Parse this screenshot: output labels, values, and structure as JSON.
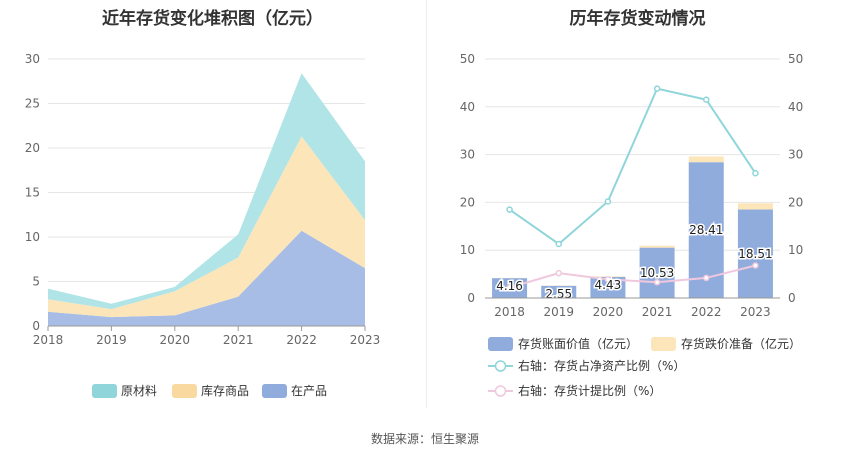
{
  "footer": {
    "source": "数据来源：恒生聚源"
  },
  "chart_data": [
    {
      "type": "area",
      "stacked": true,
      "title": "近年存货变化堆积图（亿元）",
      "categories": [
        "2018",
        "2019",
        "2020",
        "2021",
        "2022",
        "2023"
      ],
      "ylim": [
        0,
        30
      ],
      "yticks": [
        "0",
        "5",
        "10",
        "15",
        "20",
        "25",
        "30"
      ],
      "grid": true,
      "legend_position": "bottom",
      "series": [
        {
          "name": "在产品",
          "values": [
            1.6,
            1.0,
            1.2,
            3.3,
            10.7,
            6.5
          ],
          "color": "#a7bde6"
        },
        {
          "name": "库存商品",
          "values": [
            1.4,
            0.9,
            2.7,
            4.4,
            10.6,
            5.4
          ],
          "color": "#fce5b9"
        },
        {
          "name": "原材料",
          "values": [
            1.2,
            0.6,
            0.5,
            2.6,
            7.1,
            6.6
          ],
          "color": "#b0e4e6"
        }
      ],
      "legend": [
        {
          "name": "原材料",
          "color": "#8fd5da"
        },
        {
          "name": "库存商品",
          "color": "#fad9a1"
        },
        {
          "name": "在产品",
          "color": "#8facdd"
        }
      ]
    },
    {
      "type": "bar",
      "title": "历年存货变动情况",
      "categories": [
        "2018",
        "2019",
        "2020",
        "2021",
        "2022",
        "2023"
      ],
      "ylim": [
        0,
        50
      ],
      "y2lim": [
        0,
        50
      ],
      "yticks": [
        "0",
        "10",
        "20",
        "30",
        "40",
        "50"
      ],
      "grid": true,
      "legend_position": "bottom",
      "bars": [
        {
          "name": "存货账面价值（亿元）",
          "values": [
            4.16,
            2.55,
            4.43,
            10.53,
            28.41,
            18.51
          ],
          "labels": [
            "4.16",
            "2.55",
            "4.43",
            "10.53",
            "28.41",
            "18.51"
          ],
          "color": "#8facdd"
        },
        {
          "name": "存货跌价准备（亿元）",
          "values": [
            0.05,
            0.05,
            0.1,
            0.4,
            1.2,
            1.3
          ],
          "color": "#fce5b9"
        }
      ],
      "lines": [
        {
          "name": "右轴：存货占净资产比例（%）",
          "values": [
            18.5,
            11.3,
            20.2,
            43.8,
            41.5,
            26.1
          ],
          "color": "#8fd5da"
        },
        {
          "name": "右轴：存货计提比例（%）",
          "values": [
            2.2,
            5.2,
            3.9,
            3.3,
            4.2,
            6.8
          ],
          "color": "#f0c8dd"
        }
      ]
    }
  ]
}
